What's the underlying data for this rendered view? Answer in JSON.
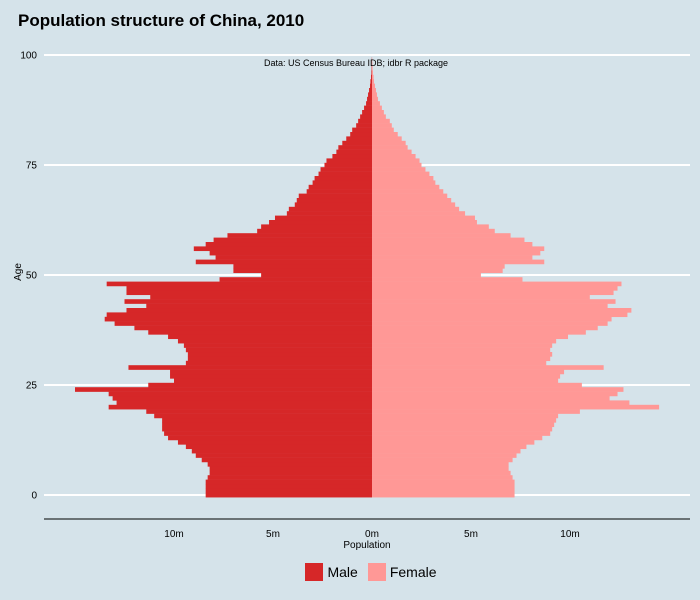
{
  "chart_data": {
    "type": "bar",
    "orientation": "horizontal-pyramid",
    "title": "Population structure of China, 2010",
    "caption": "Data: US Census Bureau IDB; idbr R package",
    "xlabel": "Population",
    "ylabel": "Age",
    "xlim": [
      -16.5,
      16.5
    ],
    "ylim": [
      -5,
      100
    ],
    "x_ticks": [
      {
        "value": -10,
        "label": "10m"
      },
      {
        "value": -5,
        "label": "5m"
      },
      {
        "value": 0,
        "label": "0m"
      },
      {
        "value": 5,
        "label": "5m"
      },
      {
        "value": 10,
        "label": "10m"
      }
    ],
    "y_ticks": [
      0,
      25,
      50,
      75,
      100
    ],
    "grid": "horizontal major lines",
    "legend_position": "bottom",
    "colors": {
      "Male": "#d62728",
      "Female": "#ff9896",
      "background": "#d5e3ea"
    },
    "ages": [
      0,
      1,
      2,
      3,
      4,
      5,
      6,
      7,
      8,
      9,
      10,
      11,
      12,
      13,
      14,
      15,
      16,
      17,
      18,
      19,
      20,
      21,
      22,
      23,
      24,
      25,
      26,
      27,
      28,
      29,
      30,
      31,
      32,
      33,
      34,
      35,
      36,
      37,
      38,
      39,
      40,
      41,
      42,
      43,
      44,
      45,
      46,
      47,
      48,
      49,
      50,
      51,
      52,
      53,
      54,
      55,
      56,
      57,
      58,
      59,
      60,
      61,
      62,
      63,
      64,
      65,
      66,
      67,
      68,
      69,
      70,
      71,
      72,
      73,
      74,
      75,
      76,
      77,
      78,
      79,
      80,
      81,
      82,
      83,
      84,
      85,
      86,
      87,
      88,
      89,
      90,
      91,
      92,
      93,
      94,
      95,
      96,
      97,
      98,
      99,
      100
    ],
    "series": [
      {
        "name": "Male",
        "values": [
          8.4,
          8.4,
          8.4,
          8.4,
          8.3,
          8.2,
          8.2,
          8.3,
          8.6,
          8.9,
          9.1,
          9.4,
          9.8,
          10.3,
          10.5,
          10.6,
          10.6,
          10.6,
          11.0,
          11.4,
          13.3,
          12.9,
          13.1,
          13.3,
          15.0,
          11.3,
          10.0,
          10.2,
          10.2,
          12.3,
          9.4,
          9.3,
          9.3,
          9.4,
          9.5,
          9.8,
          10.3,
          11.3,
          12.0,
          13.0,
          13.5,
          13.4,
          12.4,
          11.4,
          12.5,
          11.2,
          12.4,
          12.4,
          13.4,
          7.7,
          5.6,
          7.0,
          7.0,
          8.9,
          7.9,
          8.2,
          9.0,
          8.4,
          8.0,
          7.3,
          5.8,
          5.6,
          5.2,
          4.9,
          4.3,
          4.2,
          3.9,
          3.8,
          3.7,
          3.3,
          3.2,
          3.0,
          2.9,
          2.7,
          2.6,
          2.4,
          2.3,
          2.0,
          1.8,
          1.7,
          1.5,
          1.3,
          1.1,
          1.0,
          0.8,
          0.7,
          0.6,
          0.5,
          0.4,
          0.3,
          0.25,
          0.2,
          0.15,
          0.1,
          0.08,
          0.05,
          0.03,
          0.02,
          0.01,
          0.01,
          0.0
        ]
      },
      {
        "name": "Female",
        "values": [
          7.2,
          7.2,
          7.2,
          7.2,
          7.1,
          7.0,
          6.9,
          6.9,
          7.1,
          7.3,
          7.5,
          7.8,
          8.2,
          8.6,
          9.0,
          9.1,
          9.2,
          9.3,
          9.4,
          10.5,
          14.5,
          13.0,
          12.0,
          12.4,
          12.7,
          10.6,
          9.4,
          9.5,
          9.7,
          11.7,
          8.8,
          9.0,
          9.1,
          9.0,
          9.1,
          9.3,
          9.9,
          10.8,
          11.4,
          11.9,
          12.1,
          12.9,
          13.1,
          11.9,
          12.3,
          11.0,
          12.2,
          12.4,
          12.6,
          7.6,
          5.5,
          6.6,
          6.7,
          8.7,
          8.1,
          8.5,
          8.7,
          8.1,
          7.7,
          7.0,
          6.2,
          5.9,
          5.3,
          5.2,
          4.7,
          4.4,
          4.2,
          4.0,
          3.8,
          3.6,
          3.4,
          3.2,
          3.1,
          2.9,
          2.7,
          2.5,
          2.4,
          2.2,
          2.0,
          1.8,
          1.7,
          1.5,
          1.3,
          1.1,
          1.0,
          0.9,
          0.7,
          0.6,
          0.5,
          0.4,
          0.3,
          0.25,
          0.2,
          0.15,
          0.1,
          0.08,
          0.05,
          0.03,
          0.02,
          0.01,
          0.0
        ]
      }
    ]
  }
}
